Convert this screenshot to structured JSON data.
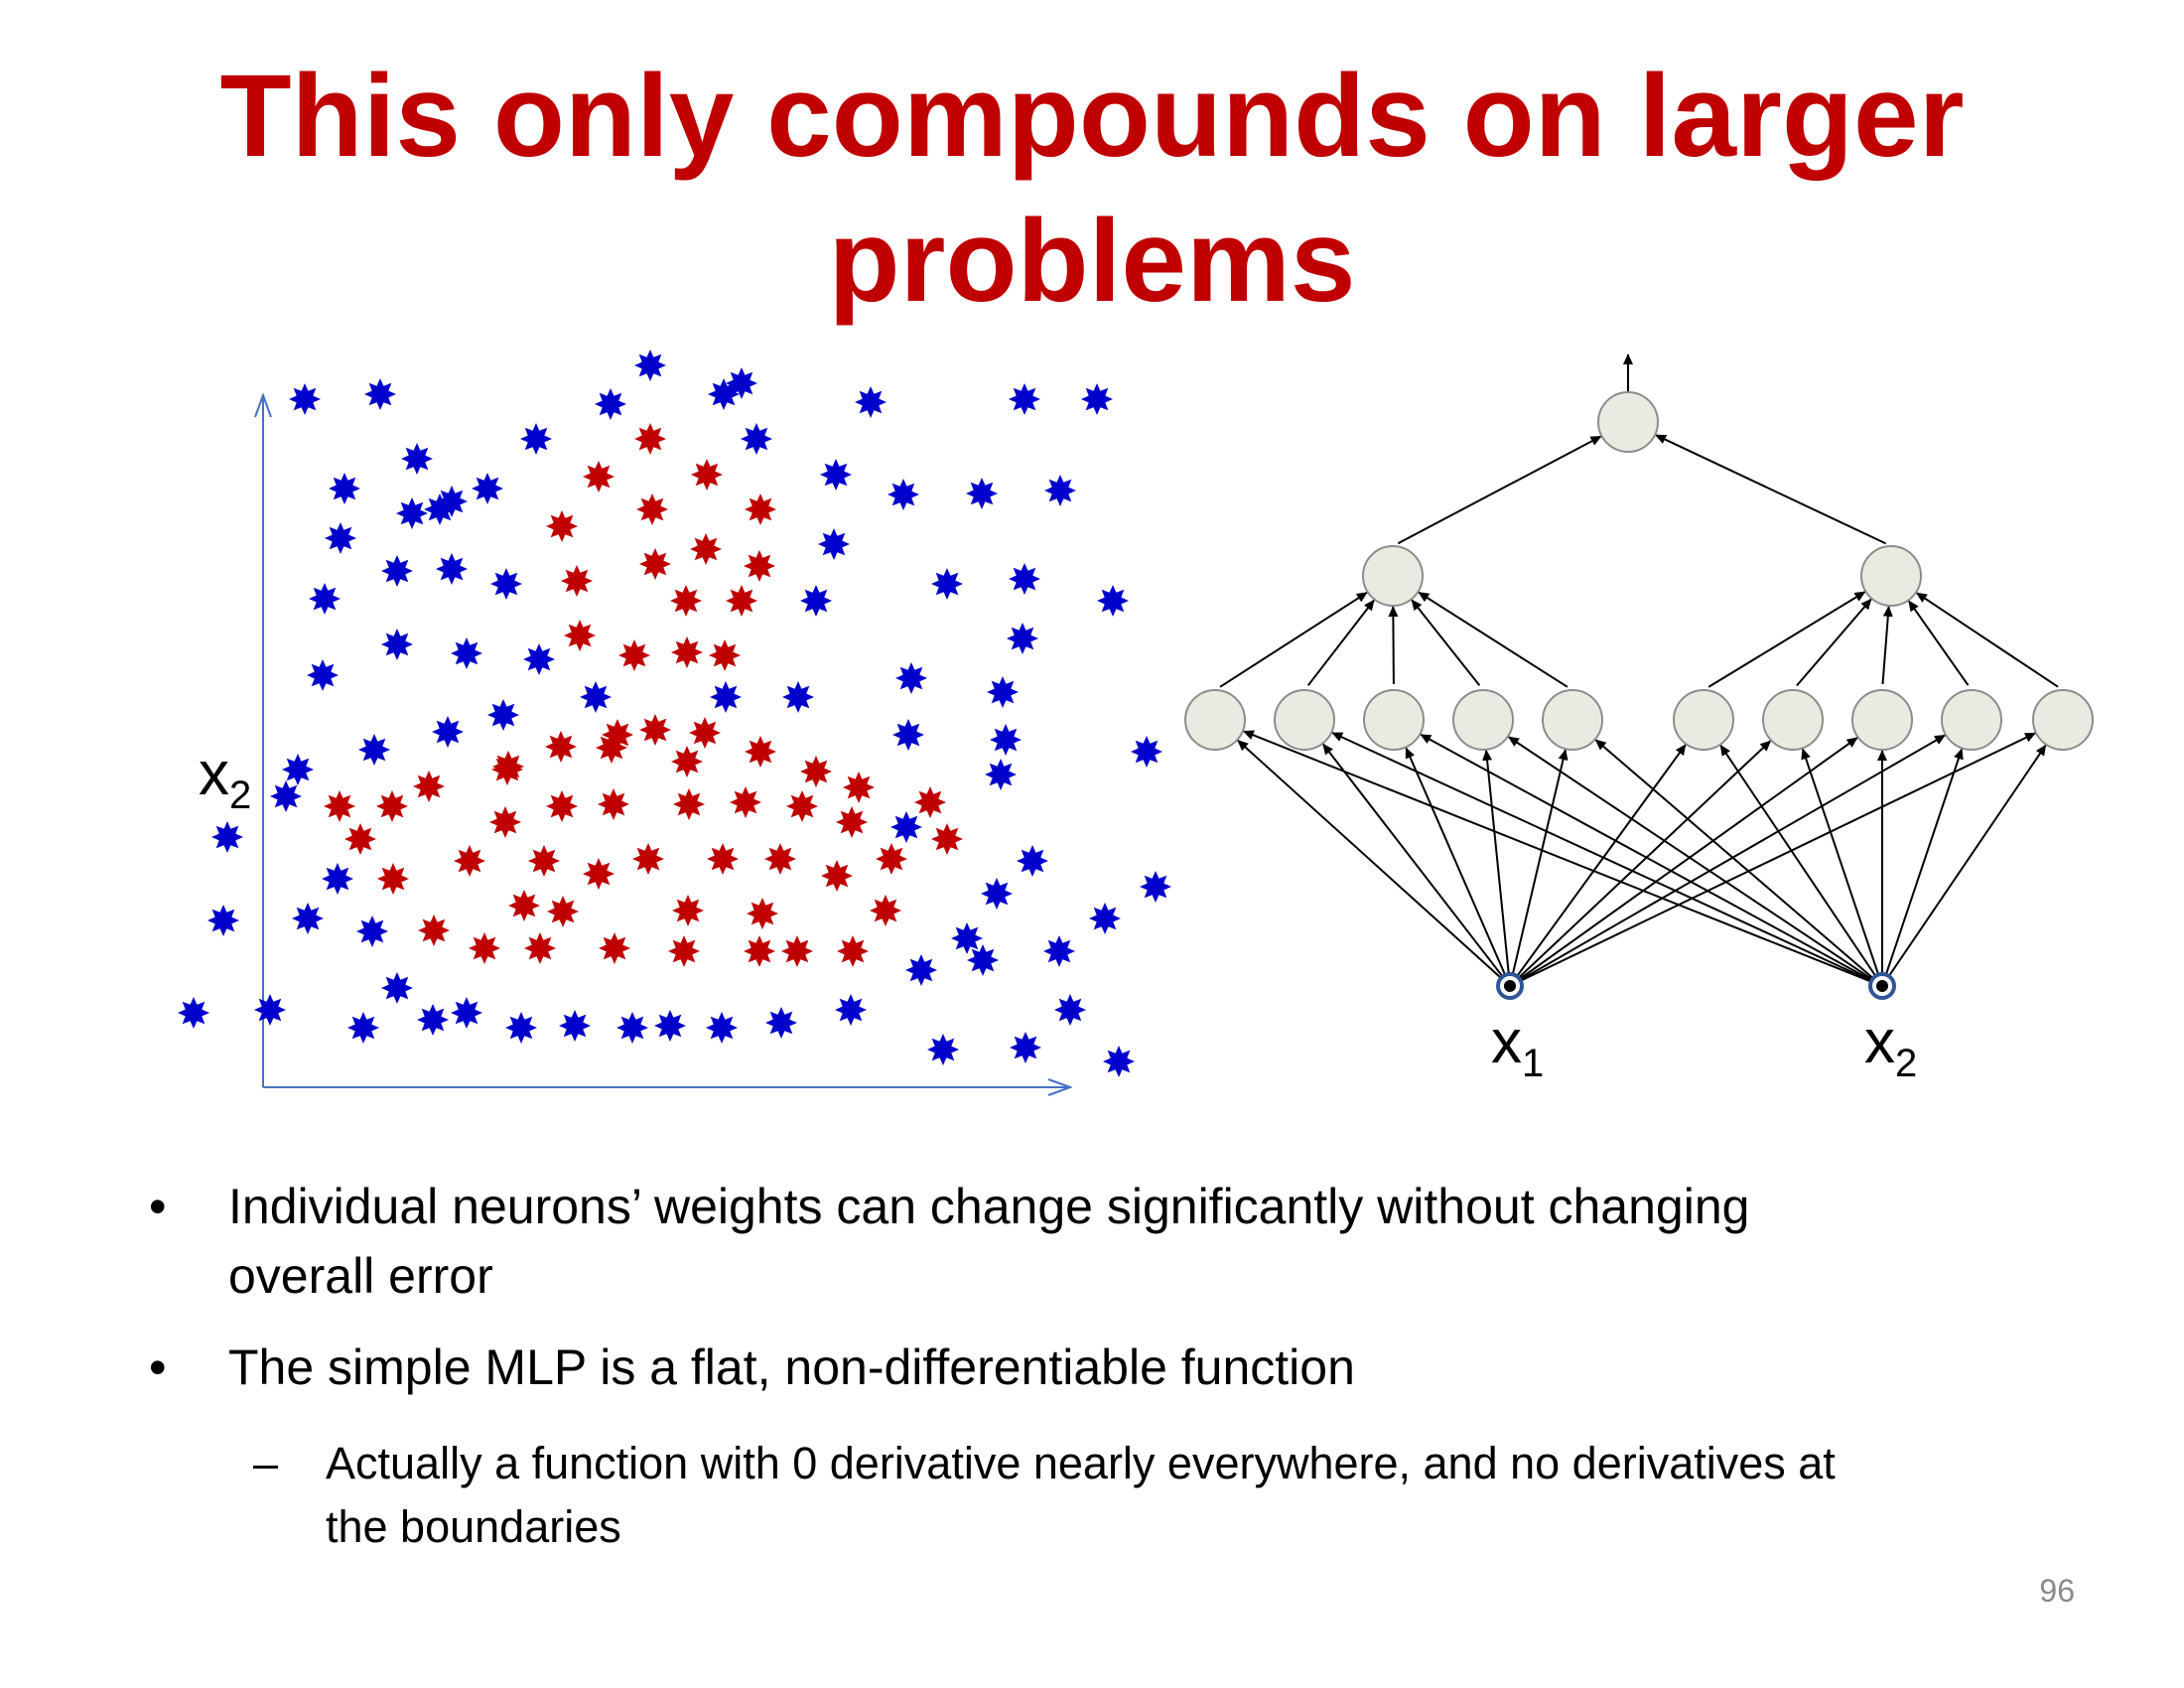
{
  "title": {
    "line1": "This only compounds on larger",
    "line2": "problems"
  },
  "scatter": {
    "y_axis_label": "x",
    "y_axis_label_sub": "2",
    "colors": {
      "class_outside": "#0000cc",
      "class_inside": "#c00000",
      "axis": "#4472c4"
    }
  },
  "network": {
    "input_labels": [
      {
        "main": "x",
        "sub": "1"
      },
      {
        "main": "x",
        "sub": "2"
      }
    ],
    "layers": {
      "inputs": 2,
      "hidden1": 10,
      "hidden2": 2,
      "output": 1
    },
    "colors": {
      "node_fill": "#ebeae2",
      "node_stroke": "#8c8c8c",
      "input_ring": "#2f5597"
    }
  },
  "bullets": [
    {
      "text_line1": "Individual neurons’ weights can change significantly without changing",
      "text_line2": "overall error"
    },
    {
      "text_line1": "The simple MLP is a flat, non-differentiable function"
    }
  ],
  "sub_bullet": {
    "text_line1": "Actually a function with 0 derivative nearly everywhere, and no derivatives at",
    "text_line2": "the boundaries"
  },
  "page_number": "96"
}
